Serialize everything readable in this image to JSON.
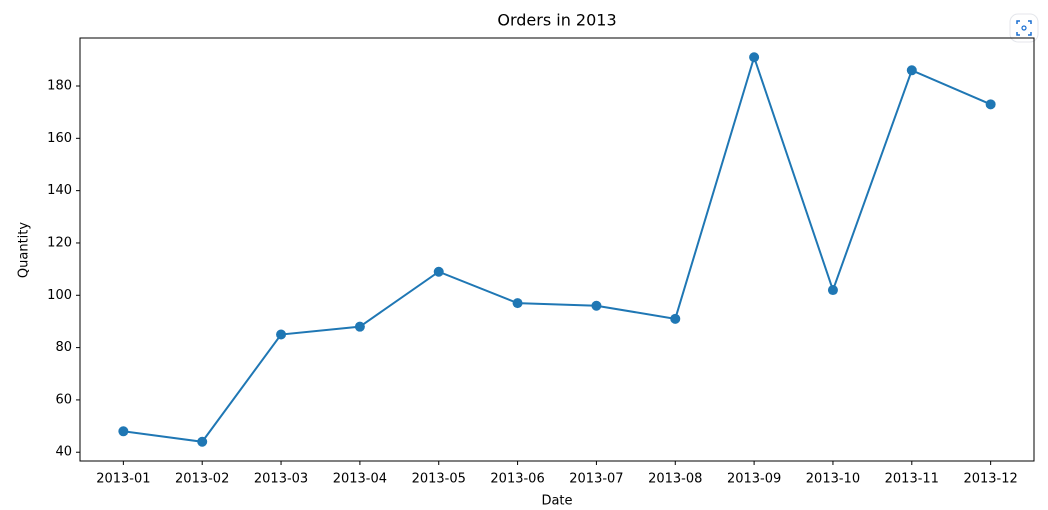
{
  "chart_data": {
    "type": "line",
    "title": "Orders in 2013",
    "x_label": "Date",
    "y_label": "Quantity",
    "categories": [
      "2013-01",
      "2013-02",
      "2013-03",
      "2013-04",
      "2013-05",
      "2013-06",
      "2013-07",
      "2013-08",
      "2013-09",
      "2013-10",
      "2013-11",
      "2013-12"
    ],
    "series": [
      {
        "name": "Quantity",
        "color": "#1f77b4",
        "values": [
          48,
          44,
          85,
          88,
          109,
          97,
          96,
          91,
          191,
          102,
          186,
          173
        ]
      }
    ],
    "ylim": [
      36.65,
      198.35
    ],
    "yticks": [
      40,
      60,
      80,
      100,
      120,
      140,
      160,
      180
    ]
  }
}
